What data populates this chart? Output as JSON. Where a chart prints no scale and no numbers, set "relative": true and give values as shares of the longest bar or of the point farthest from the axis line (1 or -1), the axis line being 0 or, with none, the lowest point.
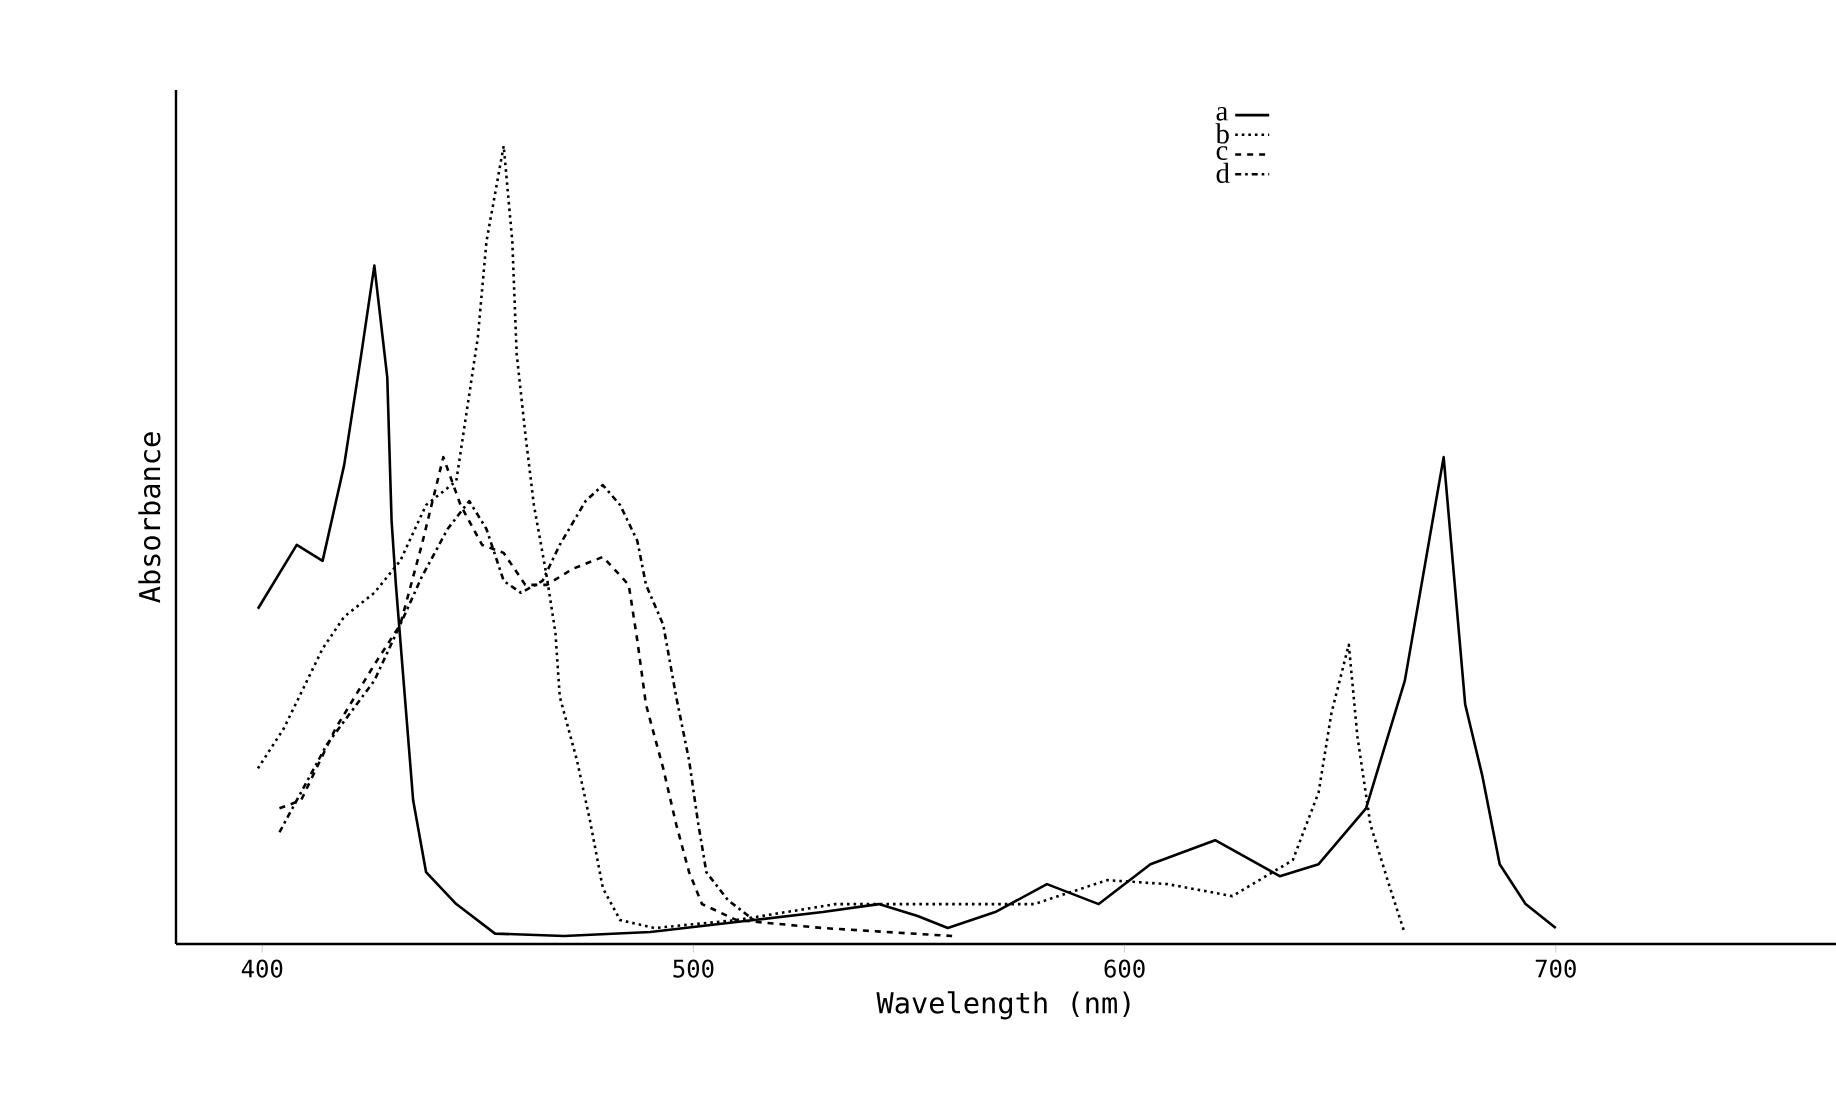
{
  "chart_data": {
    "type": "line",
    "relative": true,
    "xlabel": "Wavelength (nm)",
    "ylabel": "Absorbance",
    "xlim": [
      380,
      765
    ],
    "xticks": [
      400,
      500,
      600,
      700
    ],
    "legend": "top right",
    "grid": false,
    "marker": "none",
    "series": [
      {
        "name": "a",
        "color": "#000000",
        "line_style": "solid",
        "x": [
          399,
          408,
          414,
          419,
          423,
          426,
          429,
          430,
          431,
          435,
          438,
          445,
          454,
          470,
          490,
          514,
          530,
          543,
          552,
          559,
          570,
          582,
          594,
          606,
          621,
          636,
          645,
          656,
          665,
          674,
          679,
          683,
          687,
          693,
          700
        ],
        "values": [
          0.42,
          0.5,
          0.48,
          0.6,
          0.74,
          0.85,
          0.71,
          0.53,
          0.45,
          0.18,
          0.09,
          0.05,
          0.013,
          0.01,
          0.015,
          0.03,
          0.04,
          0.05,
          0.035,
          0.02,
          0.04,
          0.075,
          0.05,
          0.1,
          0.13,
          0.085,
          0.1,
          0.17,
          0.33,
          0.61,
          0.3,
          0.21,
          0.1,
          0.05,
          0.02
        ]
      },
      {
        "name": "b",
        "color": "#000000",
        "line_style": "dotted",
        "x": [
          399,
          405,
          414,
          419,
          426,
          432,
          438,
          445,
          450,
          452,
          456,
          458,
          459,
          461,
          463,
          466,
          468,
          469,
          473,
          476,
          479,
          483,
          491,
          510,
          533,
          556,
          579,
          596,
          610,
          625,
          639,
          645,
          648,
          652,
          654,
          657,
          661,
          665
        ],
        "values": [
          0.22,
          0.27,
          0.37,
          0.41,
          0.44,
          0.48,
          0.55,
          0.58,
          0.76,
          0.88,
          1.0,
          0.88,
          0.74,
          0.64,
          0.55,
          0.46,
          0.39,
          0.31,
          0.23,
          0.155,
          0.07,
          0.03,
          0.02,
          0.03,
          0.05,
          0.05,
          0.05,
          0.08,
          0.075,
          0.06,
          0.105,
          0.19,
          0.29,
          0.375,
          0.26,
          0.15,
          0.08,
          0.013
        ]
      },
      {
        "name": "c",
        "color": "#000000",
        "line_style": "dashed",
        "x": [
          404,
          409,
          417,
          426,
          432,
          437,
          442,
          446,
          451,
          456,
          461,
          466,
          472,
          479,
          485,
          487,
          489,
          493,
          496,
          499,
          502,
          510,
          530,
          560
        ],
        "values": [
          0.17,
          0.18,
          0.27,
          0.35,
          0.4,
          0.5,
          0.61,
          0.55,
          0.5,
          0.49,
          0.45,
          0.45,
          0.47,
          0.485,
          0.45,
          0.38,
          0.3,
          0.22,
          0.15,
          0.09,
          0.05,
          0.03,
          0.02,
          0.01
        ]
      },
      {
        "name": "d",
        "color": "#000000",
        "line_style": "dashdot",
        "x": [
          404,
          415,
          426,
          432,
          437,
          443,
          448,
          452,
          456,
          460,
          465,
          469,
          475,
          479,
          483,
          487,
          489,
          493,
          496,
          499,
          501,
          503,
          508,
          514
        ],
        "values": [
          0.14,
          0.25,
          0.33,
          0.4,
          0.46,
          0.52,
          0.555,
          0.52,
          0.455,
          0.44,
          0.455,
          0.5,
          0.555,
          0.575,
          0.55,
          0.505,
          0.45,
          0.4,
          0.31,
          0.23,
          0.155,
          0.09,
          0.055,
          0.03
        ]
      }
    ]
  }
}
